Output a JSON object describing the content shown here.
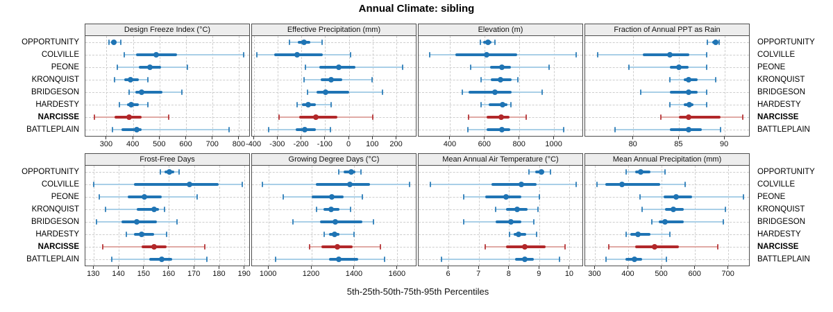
{
  "title": "Annual Climate: sibling",
  "caption": "5th-25th-50th-75th-95th Percentiles",
  "colors": {
    "normal": "#1f74b4",
    "normal_light": "#a9cfe7",
    "highlight": "#b2282a",
    "highlight_light": "#e0a9a5",
    "grid": "#cdcdcd",
    "panel_border": "#4d4d4d",
    "strip_bg": "#ededed"
  },
  "chart_data": {
    "type": "percentile-dotplot",
    "title": "Annual Climate: sibling",
    "caption": "5th-25th-50th-75th-95th Percentiles",
    "percentile_levels": [
      5,
      25,
      50,
      75,
      95
    ],
    "legend_position": "none",
    "grid": "dashed",
    "sites": [
      "OPPORTUNITY",
      "COLVILLE",
      "PEONE",
      "KRONQUIST",
      "BRIDGESON",
      "HARDESTY",
      "NARCISSE",
      "BATTLEPLAIN"
    ],
    "highlight_site": "NARCISSE",
    "panels": [
      {
        "title": "Design Freeze Index (°C)",
        "row": 0,
        "col": 0,
        "domain": [
          219,
          842
        ],
        "ticks": [
          300,
          400,
          500,
          600,
          700,
          800
        ],
        "values": [
          [
            307,
            316,
            327,
            338,
            353
          ],
          [
            365,
            410,
            487,
            565,
            815
          ],
          [
            340,
            420,
            462,
            505,
            605
          ],
          [
            330,
            365,
            390,
            420,
            455
          ],
          [
            385,
            408,
            432,
            510,
            583
          ],
          [
            347,
            375,
            392,
            420,
            455
          ],
          [
            253,
            330,
            383,
            430,
            532
          ],
          [
            322,
            355,
            412,
            432,
            762
          ]
        ]
      },
      {
        "title": "Effective Precipitation (mm)",
        "row": 0,
        "col": 1,
        "domain": [
          -409,
          286
        ],
        "ticks": [
          -400,
          -300,
          -200,
          -100,
          0,
          100,
          200
        ],
        "values": [
          [
            -250,
            -215,
            -190,
            -165,
            -113
          ],
          [
            -390,
            -315,
            -218,
            -110,
            5
          ],
          [
            -185,
            -125,
            -45,
            25,
            225
          ],
          [
            -190,
            -120,
            -75,
            -30,
            95
          ],
          [
            -175,
            -138,
            -100,
            0,
            140
          ],
          [
            -218,
            -198,
            -172,
            -140,
            -75
          ],
          [
            -295,
            -210,
            -140,
            -50,
            100
          ],
          [
            -338,
            -225,
            -188,
            -140,
            -78
          ]
        ]
      },
      {
        "title": "Elevation (m)",
        "row": 0,
        "col": 2,
        "domain": [
          216,
          1170
        ],
        "ticks": [
          400,
          600,
          800,
          1000
        ],
        "values": [
          [
            572,
            590,
            615,
            637,
            655
          ],
          [
            280,
            430,
            610,
            785,
            1125
          ],
          [
            516,
            628,
            697,
            748,
            971
          ],
          [
            575,
            632,
            690,
            755,
            790
          ],
          [
            468,
            505,
            658,
            755,
            928
          ],
          [
            578,
            620,
            703,
            730,
            748
          ],
          [
            504,
            610,
            692,
            740,
            838
          ],
          [
            500,
            610,
            697,
            745,
            1055
          ]
        ]
      },
      {
        "title": "Fraction of Annual PPT as Rain",
        "row": 0,
        "col": 3,
        "domain": [
          74.7,
          92.8
        ],
        "ticks": [
          80,
          85,
          90
        ],
        "values": [
          [
            88.1,
            88.6,
            89.0,
            89.2,
            89.4
          ],
          [
            76.1,
            81.0,
            84.0,
            86.1,
            88.0
          ],
          [
            79.5,
            84.0,
            85.0,
            86.0,
            88.0
          ],
          [
            84.0,
            85.5,
            86.0,
            87.0,
            89.0
          ],
          [
            80.8,
            84.0,
            86.0,
            87.0,
            88.0
          ],
          [
            84.0,
            85.5,
            86.1,
            86.6,
            88.0
          ],
          [
            83.0,
            85.0,
            86.0,
            89.5,
            92.0
          ],
          [
            78.0,
            84.0,
            86.0,
            87.5,
            89.5
          ]
        ]
      },
      {
        "title": "Frost-Free Days",
        "row": 1,
        "col": 0,
        "domain": [
          126.6,
          192.3
        ],
        "ticks": [
          130,
          140,
          150,
          160,
          170,
          180,
          190
        ],
        "values": [
          [
            156.5,
            158,
            160,
            162,
            164
          ],
          [
            130,
            146,
            168,
            179.5,
            189
          ],
          [
            132,
            143.5,
            150,
            157,
            171
          ],
          [
            134.5,
            147,
            154,
            156,
            158
          ],
          [
            131,
            141,
            147,
            155,
            163
          ],
          [
            143,
            146,
            149,
            154,
            159
          ],
          [
            133.5,
            149,
            154,
            159,
            174
          ],
          [
            137,
            152,
            157,
            161,
            175
          ]
        ]
      },
      {
        "title": "Growing Degree Days (°C)",
        "row": 1,
        "col": 1,
        "domain": [
          922,
          1691
        ],
        "ticks": [
          1000,
          1200,
          1400,
          1600
        ],
        "values": [
          [
            1325,
            1350,
            1385,
            1405,
            1430
          ],
          [
            970,
            1220,
            1378,
            1470,
            1655
          ],
          [
            1068,
            1200,
            1293,
            1350,
            1435
          ],
          [
            1222,
            1255,
            1290,
            1330,
            1382
          ],
          [
            1114,
            1240,
            1310,
            1437,
            1487
          ],
          [
            1257,
            1280,
            1305,
            1330,
            1398
          ],
          [
            1190,
            1245,
            1318,
            1390,
            1520
          ],
          [
            1032,
            1280,
            1325,
            1415,
            1538
          ]
        ]
      },
      {
        "title": "Mean Annual Air Temperature (°C)",
        "row": 1,
        "col": 2,
        "domain": [
          5.0,
          10.46
        ],
        "ticks": [
          6,
          7,
          8,
          9,
          10
        ],
        "values": [
          [
            8.65,
            8.85,
            9.05,
            9.15,
            9.35
          ],
          [
            5.4,
            7.4,
            8.4,
            8.9,
            10.2
          ],
          [
            6.5,
            7.2,
            7.9,
            8.4,
            9.0
          ],
          [
            7.55,
            7.9,
            8.25,
            8.6,
            8.95
          ],
          [
            6.5,
            7.55,
            8.05,
            8.4,
            8.8
          ],
          [
            8.0,
            8.15,
            8.3,
            8.55,
            8.9
          ],
          [
            7.2,
            7.9,
            8.5,
            9.2,
            9.85
          ],
          [
            5.75,
            8.2,
            8.5,
            8.8,
            9.65
          ]
        ]
      },
      {
        "title": "Mean Annual Precipitation (mm)",
        "row": 1,
        "col": 3,
        "domain": [
          270,
          765
        ],
        "ticks": [
          300,
          400,
          500,
          600,
          700
        ],
        "values": [
          [
            392,
            420,
            437,
            465,
            510
          ],
          [
            305,
            330,
            381,
            495,
            569
          ],
          [
            435,
            505,
            543,
            590,
            745
          ],
          [
            440,
            510,
            535,
            565,
            690
          ],
          [
            469,
            490,
            510,
            565,
            683
          ],
          [
            392,
            405,
            428,
            465,
            524
          ],
          [
            340,
            420,
            479,
            550,
            668
          ],
          [
            333,
            390,
            417,
            440,
            514
          ]
        ]
      }
    ]
  }
}
